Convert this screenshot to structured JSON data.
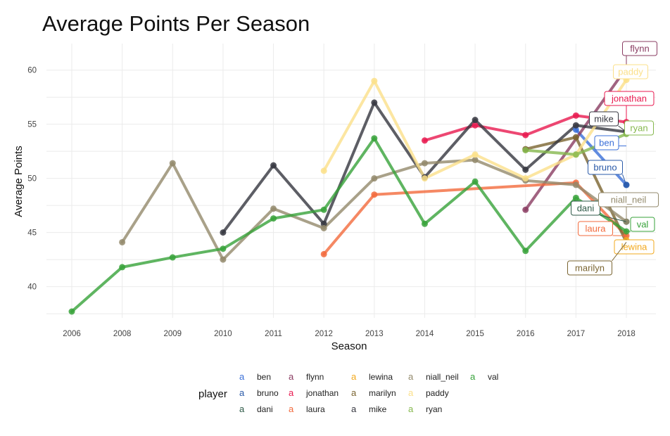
{
  "chart_data": {
    "type": "line",
    "title": "Average Points Per Season",
    "xlabel": "Season",
    "ylabel": "Average Points",
    "x_ticks": [
      "2006",
      "2008",
      "2009",
      "2010",
      "2011",
      "2012",
      "2013",
      "2014",
      "2015",
      "2016",
      "2017",
      "2018"
    ],
    "y_ticks": [
      "40",
      "45",
      "50",
      "55",
      "60"
    ],
    "ylim": [
      37.7,
      61.8
    ],
    "grid": true,
    "legend_title": "player",
    "legend_position": "bottom",
    "legend_key_glyph": "a",
    "series": [
      {
        "name": "ben",
        "color": "#3a6fd8",
        "points": [
          [
            "2017",
            54.5
          ],
          [
            "2018",
            49.4
          ]
        ],
        "label_point": [
          "2018",
          53.0
        ]
      },
      {
        "name": "bruno",
        "color": "#2a5aa8",
        "points": [
          [
            "2018",
            49.4
          ]
        ]
      },
      {
        "name": "dani",
        "color": "#2e5a48",
        "points": [
          [
            "2018",
            46.0
          ]
        ]
      },
      {
        "name": "flynn",
        "color": "#8a3c62",
        "points": [
          [
            "2016",
            47.1
          ],
          [
            "2018",
            60.2
          ]
        ]
      },
      {
        "name": "jonathan",
        "color": "#e8194f",
        "points": [
          [
            "2014",
            53.5
          ],
          [
            "2015",
            54.9
          ],
          [
            "2016",
            54.0
          ],
          [
            "2017",
            55.8
          ],
          [
            "2018",
            55.2
          ]
        ]
      },
      {
        "name": "laura",
        "color": "#f26a3c",
        "points": [
          [
            "2012",
            43.0
          ],
          [
            "2013",
            48.5
          ],
          [
            "2017",
            49.6
          ],
          [
            "2018",
            44.7
          ]
        ]
      },
      {
        "name": "lewina",
        "color": "#f2a81c",
        "points": [
          [
            "2018",
            44.3
          ]
        ]
      },
      {
        "name": "marilyn",
        "color": "#7a6430",
        "points": [
          [
            "2016",
            52.7
          ],
          [
            "2017",
            53.8
          ],
          [
            "2018",
            44.1
          ]
        ]
      },
      {
        "name": "mike",
        "color": "#35363f",
        "points": [
          [
            "2010",
            45.0
          ],
          [
            "2011",
            51.2
          ],
          [
            "2012",
            45.8
          ],
          [
            "2013",
            57.0
          ],
          [
            "2014",
            50.1
          ],
          [
            "2015",
            55.4
          ],
          [
            "2016",
            50.8
          ],
          [
            "2017",
            54.9
          ],
          [
            "2018",
            54.3
          ]
        ]
      },
      {
        "name": "niall_neil",
        "color": "#938a6c",
        "points": [
          [
            "2008",
            44.1
          ],
          [
            "2009",
            51.4
          ],
          [
            "2010",
            42.5
          ],
          [
            "2011",
            47.2
          ],
          [
            "2012",
            45.4
          ],
          [
            "2013",
            50.0
          ],
          [
            "2014",
            51.4
          ],
          [
            "2015",
            51.7
          ],
          [
            "2016",
            49.8
          ],
          [
            "2017",
            49.4
          ],
          [
            "2018",
            46.0
          ]
        ]
      },
      {
        "name": "paddy",
        "color": "#fbe08a",
        "points": [
          [
            "2012",
            50.7
          ],
          [
            "2013",
            59.0
          ],
          [
            "2014",
            50.0
          ],
          [
            "2015",
            52.2
          ],
          [
            "2016",
            50.0
          ],
          [
            "2017",
            52.2
          ],
          [
            "2018",
            59.1
          ]
        ]
      },
      {
        "name": "ryan",
        "color": "#86b84e",
        "points": [
          [
            "2016",
            52.6
          ],
          [
            "2017",
            52.2
          ],
          [
            "2018",
            54.1
          ]
        ]
      },
      {
        "name": "val",
        "color": "#37a23a",
        "points": [
          [
            "2006",
            37.7
          ],
          [
            "2008",
            41.8
          ],
          [
            "2009",
            42.7
          ],
          [
            "2010",
            43.5
          ],
          [
            "2011",
            46.3
          ],
          [
            "2012",
            47.1
          ],
          [
            "2013",
            53.7
          ],
          [
            "2014",
            45.8
          ],
          [
            "2015",
            49.7
          ],
          [
            "2016",
            43.3
          ],
          [
            "2017",
            48.2
          ],
          [
            "2018",
            45.1
          ]
        ]
      }
    ]
  }
}
